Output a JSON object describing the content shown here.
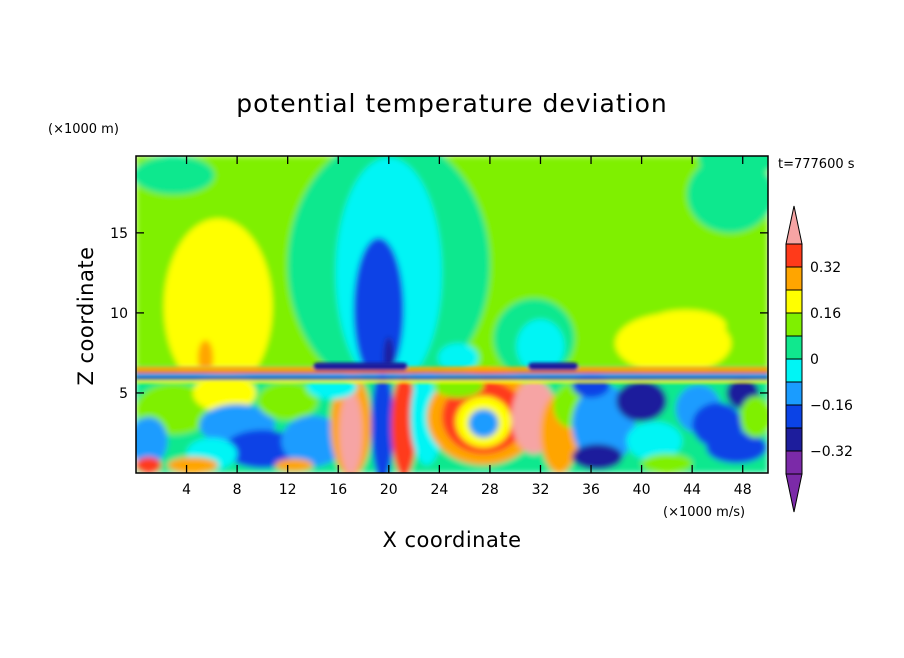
{
  "chart_data": {
    "type": "heatmap",
    "title": "potential temperature deviation",
    "xlabel": "X coordinate",
    "ylabel": "Z coordinate",
    "x_units": "(×1000 m/s)",
    "y_units": "(×1000 m)",
    "time_label": "t=777600 s",
    "xlim": [
      0,
      50
    ],
    "ylim": [
      0,
      19.8
    ],
    "x_ticks": [
      4,
      8,
      12,
      16,
      20,
      24,
      28,
      32,
      36,
      40,
      44,
      48
    ],
    "y_ticks": [
      5,
      10,
      15
    ],
    "colorbar": {
      "levels": [
        -0.4,
        -0.32,
        -0.24,
        -0.16,
        -0.08,
        0,
        0.08,
        0.16,
        0.24,
        0.32,
        0.4
      ],
      "labeled_levels": [
        0.32,
        0.16,
        0,
        -0.16,
        -0.32
      ],
      "colors": [
        "#7b2aa8",
        "#1d1d9c",
        "#0b43e6",
        "#1a9cff",
        "#00f5f5",
        "#10e88e",
        "#7ff000",
        "#ffff00",
        "#ffa500",
        "#ff3a1a",
        "#f6a4a4"
      ],
      "extend": "both"
    },
    "field_description_values": {
      "upper_layer_background": 0.04,
      "lower_layer_range": [
        -0.4,
        0.4
      ]
    }
  }
}
